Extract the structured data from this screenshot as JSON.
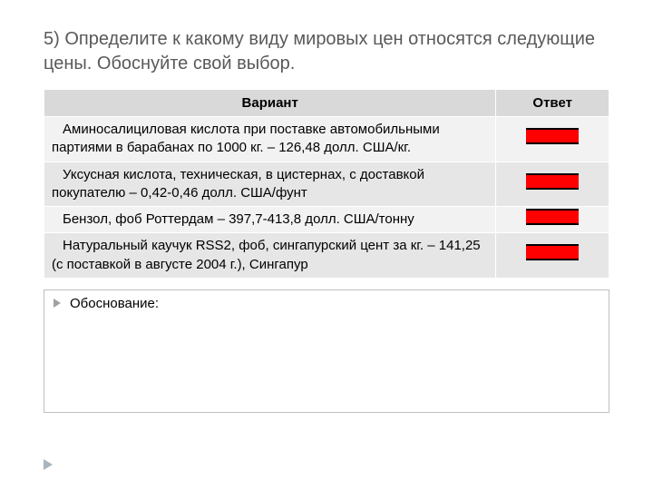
{
  "title": "5) Определите к какому виду мировых цен относятся следующие цены. Обоснуйте свой выбор.",
  "table": {
    "headers": {
      "variant": "Вариант",
      "answer": "Ответ"
    },
    "rows": [
      {
        "variant": "Аминосалициловая кислота при поставке автомобильными партиями в барабанах по 1000 кг. – 126,48 долл. США/кг.",
        "parity": "even"
      },
      {
        "variant": "Уксусная кислота, техническая, в цистернах, с доставкой покупателю – 0,42-0,46 долл. США/фунт",
        "parity": "odd"
      },
      {
        "variant": "Бензол, фоб Роттердам – 397,7-413,8 долл. США/тонну",
        "parity": "even"
      },
      {
        "variant": "Натуральный каучук RSS2, фоб, сингапурский цент за кг. – 141,25 (с поставкой в августе 2004 г.), Сингапур",
        "parity": "odd"
      }
    ]
  },
  "justify_label": "Обоснование:",
  "colors": {
    "title_color": "#595959",
    "header_bg": "#d9d9d9",
    "row_even_bg": "#f2f2f2",
    "row_odd_bg": "#e6e6e6",
    "redact_fill": "#ff0000",
    "box_border": "#bfbfbf",
    "footer_tri": "#a9b4bd"
  }
}
